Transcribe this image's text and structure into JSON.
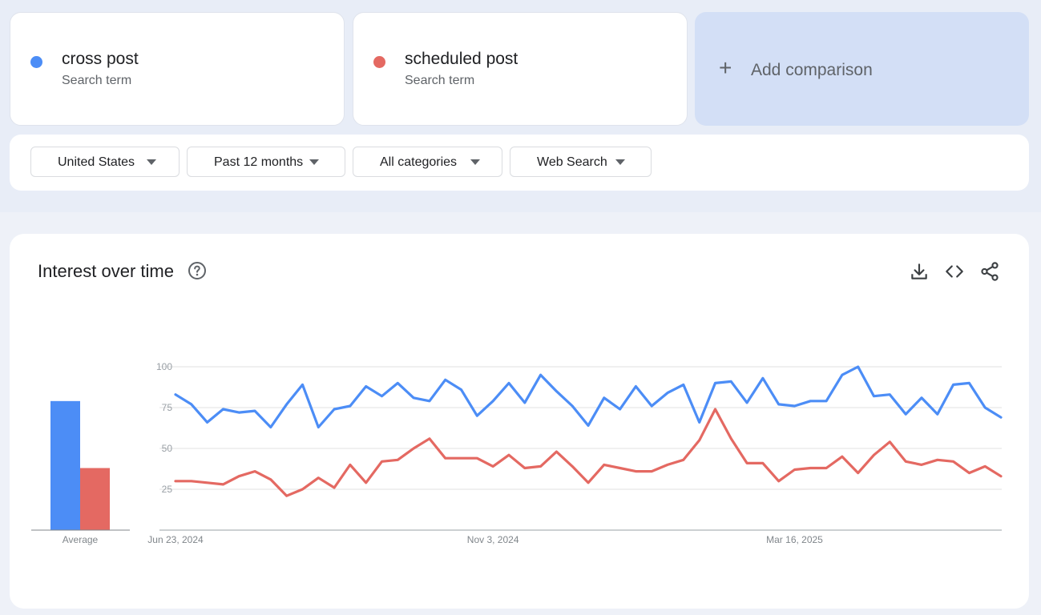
{
  "terms": [
    {
      "term": "cross post",
      "sub": "Search term",
      "color": "#4c8df6"
    },
    {
      "term": "scheduled post",
      "sub": "Search term",
      "color": "#e46962"
    }
  ],
  "add_comparison": {
    "label": "Add comparison",
    "icon": "plus-icon"
  },
  "filters": {
    "region": "United States",
    "time": "Past 12 months",
    "category": "All categories",
    "property": "Web Search"
  },
  "chart_section": {
    "title": "Interest over time",
    "icons": [
      "help-icon",
      "download-icon",
      "embed-code-icon",
      "share-icon"
    ]
  },
  "chart_data": [
    {
      "type": "bar",
      "categories": [
        "Average"
      ],
      "series": [
        {
          "name": "cross post",
          "values": [
            79
          ],
          "color": "#4c8df6"
        },
        {
          "name": "scheduled post",
          "values": [
            38
          ],
          "color": "#e46962"
        }
      ],
      "ylim": [
        0,
        100
      ]
    },
    {
      "type": "line",
      "x_tick_labels": [
        "Jun 23, 2024",
        "Nov 3, 2024",
        "Mar 16, 2025"
      ],
      "x_tick_index": [
        0,
        20,
        39
      ],
      "y_ticks": [
        25,
        50,
        75,
        100
      ],
      "ylim": [
        0,
        100
      ],
      "grid": true,
      "series": [
        {
          "name": "cross post",
          "color": "#4c8df6",
          "values": [
            83,
            77,
            66,
            74,
            72,
            73,
            63,
            77,
            89,
            63,
            74,
            76,
            88,
            82,
            90,
            81,
            79,
            92,
            86,
            70,
            79,
            90,
            78,
            95,
            85,
            76,
            64,
            81,
            74,
            88,
            76,
            84,
            89,
            66,
            90,
            91,
            78,
            93,
            77,
            76,
            79,
            79,
            95,
            100,
            82,
            83,
            71,
            81,
            71,
            89,
            90,
            75,
            69
          ]
        },
        {
          "name": "scheduled post",
          "color": "#e46962",
          "values": [
            30,
            30,
            29,
            28,
            33,
            36,
            31,
            21,
            25,
            32,
            26,
            40,
            29,
            42,
            43,
            50,
            56,
            44,
            44,
            44,
            39,
            46,
            38,
            39,
            48,
            39,
            29,
            40,
            38,
            36,
            36,
            40,
            43,
            55,
            74,
            56,
            41,
            41,
            30,
            37,
            38,
            38,
            45,
            35,
            46,
            54,
            42,
            40,
            43,
            42,
            35,
            39,
            33
          ]
        }
      ]
    }
  ]
}
